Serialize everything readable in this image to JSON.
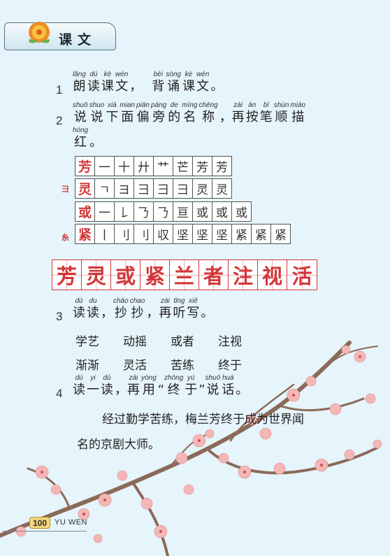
{
  "header": {
    "title": "课文"
  },
  "colors": {
    "accent_red": "#d2363a",
    "page_bg": "#e6f4fb",
    "badge": "#f4d77a"
  },
  "icons": {
    "header_logo": "flower-icon",
    "decoration": "plum-blossom-branch"
  },
  "task1": {
    "number": "1",
    "groups": [
      [
        {
          "py": "lǎng",
          "hz": "朗"
        },
        {
          "py": "dú",
          "hz": "读"
        },
        {
          "py": "kè",
          "hz": "课"
        },
        {
          "py": "wén",
          "hz": "文"
        }
      ],
      [
        {
          "py": "bèi",
          "hz": "背"
        },
        {
          "py": "sòng",
          "hz": "诵"
        },
        {
          "py": "kè",
          "hz": "课"
        },
        {
          "py": "wén",
          "hz": "文"
        }
      ]
    ],
    "comma": "，",
    "end": "。"
  },
  "task2": {
    "number": "2",
    "line1": [
      {
        "py": "shuō",
        "hz": "说"
      },
      {
        "py": "shuo",
        "hz": "说"
      },
      {
        "py": "xià",
        "hz": "下"
      },
      {
        "py": "mian",
        "hz": "面"
      },
      {
        "py": "piān",
        "hz": "偏"
      },
      {
        "py": "páng",
        "hz": "旁"
      },
      {
        "py": "de",
        "hz": "的"
      },
      {
        "py": "míng",
        "hz": "名"
      },
      {
        "py": "chēng",
        "hz": "称"
      },
      {
        "py": "",
        "hz": "，"
      },
      {
        "py": "zài",
        "hz": "再"
      },
      {
        "py": "àn",
        "hz": "按"
      },
      {
        "py": "bǐ",
        "hz": "笔"
      },
      {
        "py": "shùn",
        "hz": "顺"
      },
      {
        "py": "miáo",
        "hz": "描"
      }
    ],
    "line2": [
      {
        "py": "hóng",
        "hz": "红"
      },
      {
        "py": "",
        "hz": "。"
      }
    ]
  },
  "stroke_rows": [
    {
      "head": "芳",
      "radical": "",
      "steps": [
        "一",
        "十",
        "廾",
        "艹",
        "芒",
        "芳",
        "芳"
      ]
    },
    {
      "head": "灵",
      "radical": "彐",
      "steps": [
        "ㄱ",
        "ヨ",
        "彐",
        "彐",
        "⺕",
        "灵",
        "灵"
      ]
    },
    {
      "head": "或",
      "radical": "",
      "steps": [
        "一",
        "𠄌",
        "𠄎",
        "𠄎",
        "亘",
        "或",
        "或",
        "或"
      ]
    },
    {
      "head": "紧",
      "radical": "糸",
      "steps": [
        "丨",
        "刂",
        "刂",
        "収",
        "坚",
        "坚",
        "坚",
        "紧",
        "紧",
        "紧"
      ]
    }
  ],
  "write_chars": [
    "芳",
    "灵",
    "或",
    "紧",
    "兰",
    "者",
    "注",
    "视",
    "活"
  ],
  "task3": {
    "number": "3",
    "prompt": [
      {
        "py": "dú",
        "hz": "读"
      },
      {
        "py": "du",
        "hz": "读"
      },
      {
        "py": "",
        "hz": "，"
      },
      {
        "py": "chāo",
        "hz": "抄"
      },
      {
        "py": "chao",
        "hz": "抄"
      },
      {
        "py": "",
        "hz": "，"
      },
      {
        "py": "zài",
        "hz": "再"
      },
      {
        "py": "tīng",
        "hz": "听"
      },
      {
        "py": "xiě",
        "hz": "写"
      },
      {
        "py": "",
        "hz": "。"
      }
    ],
    "words_row1": [
      "学艺",
      "动摇",
      "或者",
      "注视"
    ],
    "words_row2": [
      "渐渐",
      "灵活",
      "苦练",
      "终于"
    ]
  },
  "task4": {
    "number": "4",
    "prompt": [
      {
        "py": "dú",
        "hz": "读"
      },
      {
        "py": "yi",
        "hz": "一"
      },
      {
        "py": "dú",
        "hz": "读"
      },
      {
        "py": "",
        "hz": "，"
      },
      {
        "py": "zài",
        "hz": "再"
      },
      {
        "py": "yòng",
        "hz": "用"
      },
      {
        "py": "",
        "hz": "“"
      },
      {
        "py": "zhōng",
        "hz": "终"
      },
      {
        "py": "yú",
        "hz": "于"
      },
      {
        "py": "",
        "hz": "”"
      },
      {
        "py": "shuō",
        "hz": "说"
      },
      {
        "py": "huà",
        "hz": "话"
      },
      {
        "py": "",
        "hz": "。"
      }
    ],
    "passage_line1": "经过勤学苦练，梅兰芳终于成为世界闻",
    "passage_line2": "名的京剧大师。"
  },
  "footer": {
    "page_number": "100",
    "label": "YU WEN"
  }
}
